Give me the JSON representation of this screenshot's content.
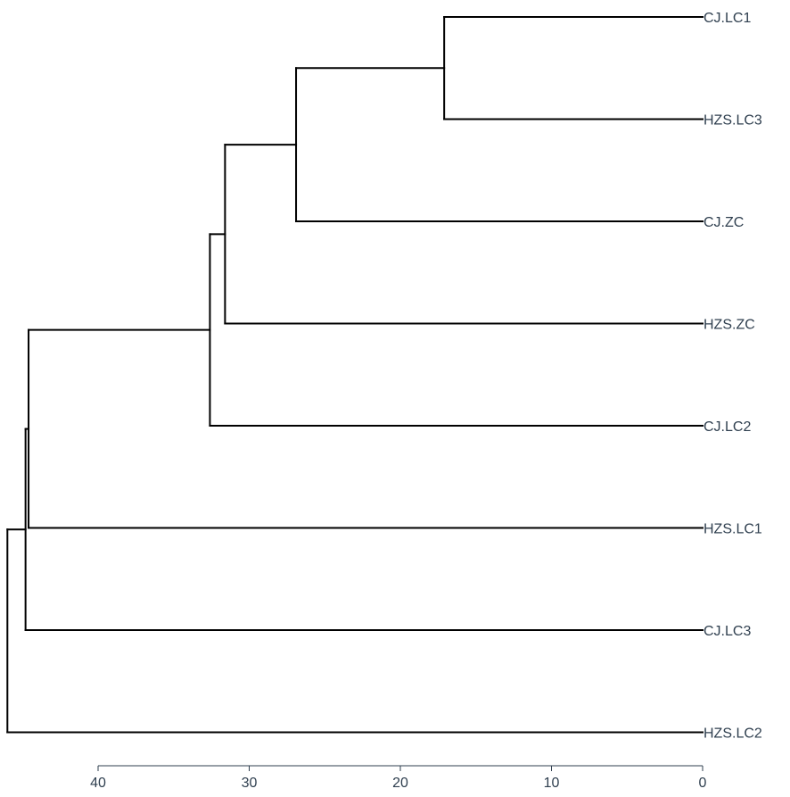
{
  "chart_data": {
    "type": "dendrogram",
    "orientation": "horizontal",
    "title": "",
    "xlabel": "",
    "ylabel": "",
    "x_ticks": [
      40,
      30,
      20,
      10,
      0
    ],
    "xlim": [
      46.2,
      0
    ],
    "x_reversed": true,
    "leaves": [
      "CJ.LC1",
      "HZS.LC3",
      "CJ.ZC",
      "HZS.ZC",
      "CJ.LC2",
      "HZS.LC1",
      "CJ.LC3",
      "HZS.LC2"
    ],
    "merges": [
      {
        "id": "n1",
        "children": [
          "CJ.LC1",
          "HZS.LC3"
        ],
        "height": 17.1
      },
      {
        "id": "n2",
        "children": [
          "n1",
          "CJ.ZC"
        ],
        "height": 26.9
      },
      {
        "id": "n3",
        "children": [
          "n2",
          "HZS.ZC"
        ],
        "height": 31.6
      },
      {
        "id": "n4",
        "children": [
          "n3",
          "CJ.LC2"
        ],
        "height": 32.6
      },
      {
        "id": "n5",
        "children": [
          "n4",
          "HZS.LC1"
        ],
        "height": 44.6
      },
      {
        "id": "n6",
        "children": [
          "n5",
          "CJ.LC3"
        ],
        "height": 44.8
      },
      {
        "id": "n7",
        "children": [
          "n6",
          "HZS.LC2"
        ],
        "height": 46.0
      }
    ],
    "grid": false,
    "legend": "none"
  }
}
